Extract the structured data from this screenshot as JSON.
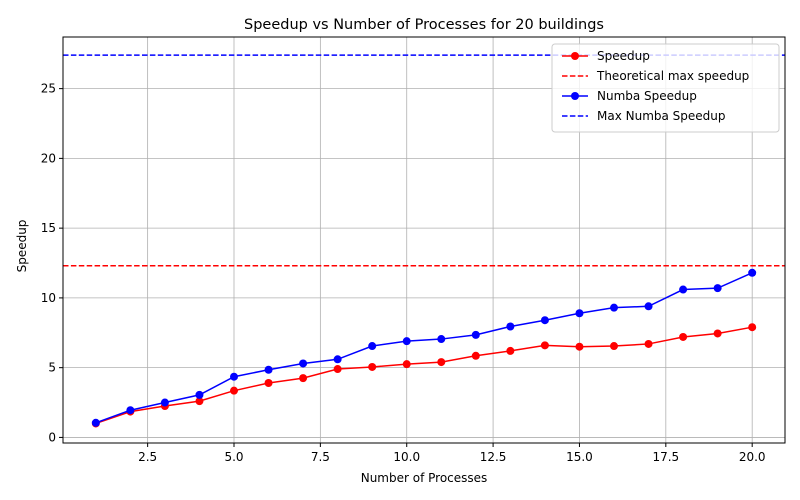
{
  "chart_data": {
    "type": "line",
    "title": "Speedup vs Number of Processes for 20 buildings",
    "xlabel": "Number of Processes",
    "ylabel": "Speedup",
    "xlim": [
      0.05,
      20.95
    ],
    "ylim": [
      -0.4,
      28.7
    ],
    "x_ticks": [
      2.5,
      5.0,
      7.5,
      10.0,
      12.5,
      15.0,
      17.5,
      20.0
    ],
    "x_tick_labels": [
      "2.5",
      "5.0",
      "7.5",
      "10.0",
      "12.5",
      "15.0",
      "17.5",
      "20.0"
    ],
    "y_ticks": [
      0,
      5,
      10,
      15,
      20,
      25
    ],
    "y_tick_labels": [
      "0",
      "5",
      "10",
      "15",
      "20",
      "25"
    ],
    "grid": true,
    "legend_position": "top-right",
    "x": [
      1,
      2,
      3,
      4,
      5,
      6,
      7,
      8,
      9,
      10,
      11,
      12,
      13,
      14,
      15,
      16,
      17,
      18,
      19,
      20
    ],
    "series": [
      {
        "name": "Speedup",
        "style": "line-marker",
        "color": "#ff0000",
        "values": [
          1.0,
          1.85,
          2.25,
          2.6,
          3.35,
          3.9,
          4.25,
          4.9,
          5.05,
          5.25,
          5.4,
          5.85,
          6.2,
          6.6,
          6.5,
          6.55,
          6.7,
          7.2,
          7.45,
          7.9
        ]
      },
      {
        "name": "Theoretical max speedup",
        "style": "hline-dashed",
        "color": "#ff0000",
        "value": 12.3
      },
      {
        "name": "Numba Speedup",
        "style": "line-marker",
        "color": "#0000ff",
        "values": [
          1.05,
          1.95,
          2.5,
          3.05,
          4.35,
          4.85,
          5.3,
          5.6,
          6.55,
          6.9,
          7.05,
          7.35,
          7.95,
          8.4,
          8.9,
          9.3,
          9.4,
          10.6,
          10.7,
          11.8
        ]
      },
      {
        "name": "Max Numba Speedup",
        "style": "hline-dashed",
        "color": "#0000ff",
        "value": 27.4
      }
    ]
  }
}
